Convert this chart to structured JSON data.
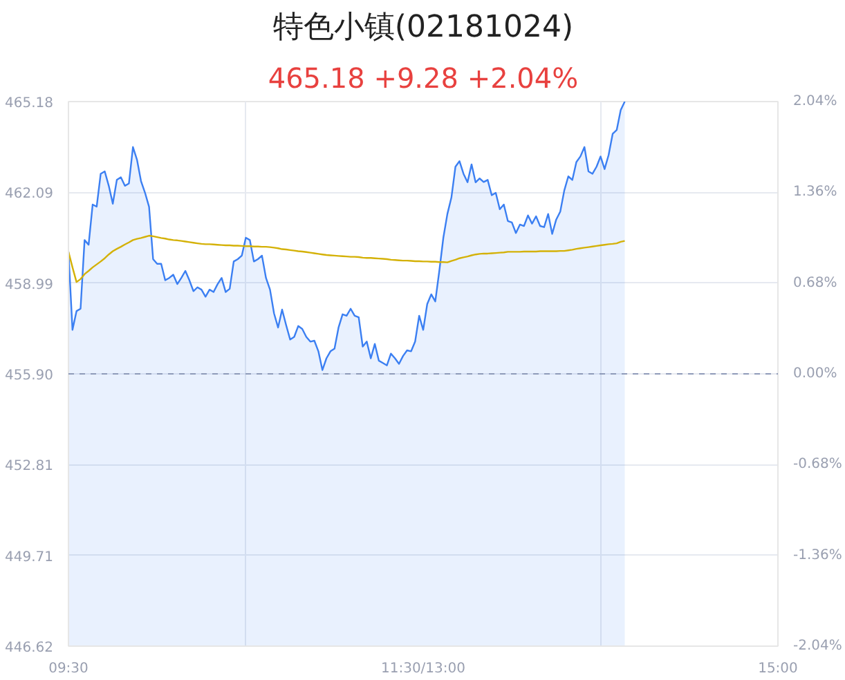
{
  "chart_data": {
    "type": "area",
    "title": "特色小镇(02181024)",
    "subtitle": "465.18 +9.28 +2.04%",
    "categories": [
      "09:30",
      null,
      null,
      null,
      null,
      null,
      null,
      null,
      null,
      null,
      null,
      null,
      null,
      null,
      null,
      null,
      null,
      null,
      null,
      null,
      null,
      null,
      null,
      null,
      null,
      null,
      null,
      null,
      null,
      null,
      null,
      null,
      null,
      null,
      null,
      null,
      null,
      null,
      null,
      null,
      null,
      null,
      null,
      null,
      null,
      null,
      null,
      null,
      null,
      null,
      null,
      null,
      null,
      null,
      null,
      null,
      null,
      null,
      null,
      null,
      null,
      null,
      null,
      null,
      null,
      null,
      null,
      null,
      null,
      null,
      null,
      null,
      null,
      null,
      null,
      null,
      null,
      null,
      null,
      null,
      null,
      null,
      null,
      null,
      null,
      null,
      null,
      null,
      "11:30/13:00",
      null,
      null,
      null,
      null,
      null,
      null,
      null,
      null,
      null,
      null,
      null,
      null,
      null,
      null,
      null,
      null,
      null,
      null,
      null,
      null,
      null,
      null,
      null,
      null,
      null,
      null,
      null,
      null,
      null,
      null,
      null,
      null,
      null,
      null,
      null,
      null,
      null,
      null,
      null,
      null,
      null,
      null,
      null,
      null,
      null,
      null,
      null,
      null,
      null,
      null,
      null,
      null,
      null,
      null,
      null,
      null,
      null,
      null,
      null,
      null,
      null,
      null,
      null,
      null,
      null,
      null,
      null,
      null,
      null,
      null,
      null,
      null,
      null,
      null,
      null,
      null,
      null,
      null,
      null,
      null,
      null,
      null,
      null,
      null,
      null,
      null,
      null,
      "15:00"
    ],
    "ylim": [
      446.62,
      465.18
    ],
    "yticks": [
      446.62,
      449.71,
      452.81,
      {
        "value": 455.9,
        "label": "455.90"
      },
      458.99,
      462.09,
      465.18
    ],
    "y2lim": [
      -2.04,
      2.04
    ],
    "y2ticks": [
      {
        "value": -2.04,
        "label": "-2.04%"
      },
      {
        "value": -1.36,
        "label": "-1.36%"
      },
      {
        "value": -0.68,
        "label": "-0.68%"
      },
      {
        "value": 0,
        "label": "0.00%"
      },
      {
        "value": 0.68,
        "label": "0.68%"
      },
      {
        "value": 1.36,
        "label": "1.36%"
      },
      {
        "value": 2.04,
        "label": "2.04%"
      }
    ],
    "grid": true,
    "ref_lines": [
      {
        "axis": "y",
        "value": 455.9,
        "color": "#8e9ab8",
        "line_style": "dashed"
      }
    ],
    "series": [
      {
        "color": "#3b7ff2",
        "values": [
          460.06,
          457.4,
          458.04,
          458.12,
          460.46,
          460.3,
          461.67,
          461.6,
          462.72,
          462.8,
          462.31,
          461.7,
          462.51,
          462.6,
          462.31,
          462.39,
          463.63,
          463.2,
          462.47,
          462.07,
          461.59,
          459.81,
          459.65,
          459.65,
          459.09,
          459.17,
          459.28,
          458.96,
          459.17,
          459.41,
          459.09,
          458.72,
          458.85,
          458.77,
          458.53,
          458.77,
          458.69,
          458.96,
          459.17,
          458.69,
          458.8,
          459.73,
          459.81,
          459.93,
          460.54,
          460.46,
          459.73,
          459.81,
          459.93,
          459.17,
          458.77,
          457.96,
          457.48,
          458.09,
          457.56,
          457.07,
          457.16,
          457.53,
          457.43,
          457.16,
          457.0,
          457.03,
          456.67,
          456.03,
          456.43,
          456.67,
          456.76,
          457.48,
          457.93,
          457.88,
          458.12,
          457.88,
          457.83,
          456.83,
          457.0,
          456.43,
          456.92,
          456.35,
          456.27,
          456.19,
          456.59,
          456.43,
          456.24,
          456.51,
          456.7,
          456.67,
          457.0,
          457.88,
          457.4,
          458.28,
          458.61,
          458.37,
          459.41,
          460.54,
          461.35,
          461.91,
          462.96,
          463.15,
          462.72,
          462.43,
          463.04,
          462.43,
          462.56,
          462.44,
          462.51,
          461.99,
          462.07,
          461.51,
          461.67,
          461.11,
          461.06,
          460.7,
          460.99,
          460.94,
          461.3,
          461.02,
          461.27,
          460.94,
          460.9,
          461.35,
          460.67,
          461.16,
          461.43,
          462.15,
          462.63,
          462.51,
          463.12,
          463.31,
          463.63,
          462.8,
          462.72,
          462.96,
          463.31,
          462.88,
          463.36,
          464.08,
          464.21,
          464.89,
          465.18,
          null,
          null,
          null,
          null,
          null,
          null,
          null,
          null,
          null,
          null,
          null,
          null,
          null,
          null,
          null,
          null,
          null,
          null,
          null,
          null,
          null,
          null,
          null,
          null,
          null,
          null,
          null,
          null,
          null,
          null,
          null,
          null,
          null,
          null,
          null,
          null,
          null,
          null
        ]
      },
      {
        "type": "line",
        "color": "#d4b106",
        "values": [
          460.06,
          459.53,
          459.03,
          459.13,
          459.3,
          459.41,
          459.53,
          459.63,
          459.73,
          459.84,
          459.97,
          460.08,
          460.16,
          460.23,
          460.31,
          460.38,
          460.46,
          460.5,
          460.53,
          460.57,
          460.61,
          460.59,
          460.56,
          460.53,
          460.51,
          460.48,
          460.46,
          460.45,
          460.43,
          460.41,
          460.39,
          460.37,
          460.35,
          460.33,
          460.32,
          460.32,
          460.31,
          460.3,
          460.29,
          460.28,
          460.28,
          460.27,
          460.27,
          460.26,
          460.25,
          460.25,
          460.24,
          460.24,
          460.23,
          460.23,
          460.22,
          460.2,
          460.18,
          460.15,
          460.14,
          460.12,
          460.1,
          460.08,
          460.07,
          460.05,
          460.03,
          460.01,
          459.99,
          459.97,
          459.95,
          459.94,
          459.93,
          459.92,
          459.91,
          459.9,
          459.89,
          459.89,
          459.88,
          459.86,
          459.85,
          459.85,
          459.84,
          459.83,
          459.82,
          459.81,
          459.79,
          459.78,
          459.77,
          459.76,
          459.76,
          459.75,
          459.74,
          459.74,
          459.73,
          459.73,
          459.72,
          459.72,
          459.71,
          459.71,
          459.7,
          459.75,
          459.79,
          459.84,
          459.87,
          459.9,
          459.94,
          459.97,
          459.99,
          460.0,
          460.0,
          460.01,
          460.02,
          460.03,
          460.04,
          460.06,
          460.06,
          460.06,
          460.06,
          460.07,
          460.07,
          460.07,
          460.07,
          460.08,
          460.08,
          460.08,
          460.08,
          460.08,
          460.09,
          460.09,
          460.11,
          460.13,
          460.16,
          460.18,
          460.2,
          460.22,
          460.24,
          460.26,
          460.28,
          460.3,
          460.32,
          460.33,
          460.35,
          460.4,
          460.43,
          null,
          null,
          null,
          null,
          null,
          null,
          null,
          null,
          null,
          null,
          null,
          null,
          null,
          null,
          null,
          null,
          null,
          null,
          null,
          null,
          null,
          null,
          null,
          null,
          null,
          null,
          null,
          null,
          null,
          null,
          null,
          null,
          null,
          null,
          null,
          null,
          null,
          null
        ]
      }
    ]
  }
}
